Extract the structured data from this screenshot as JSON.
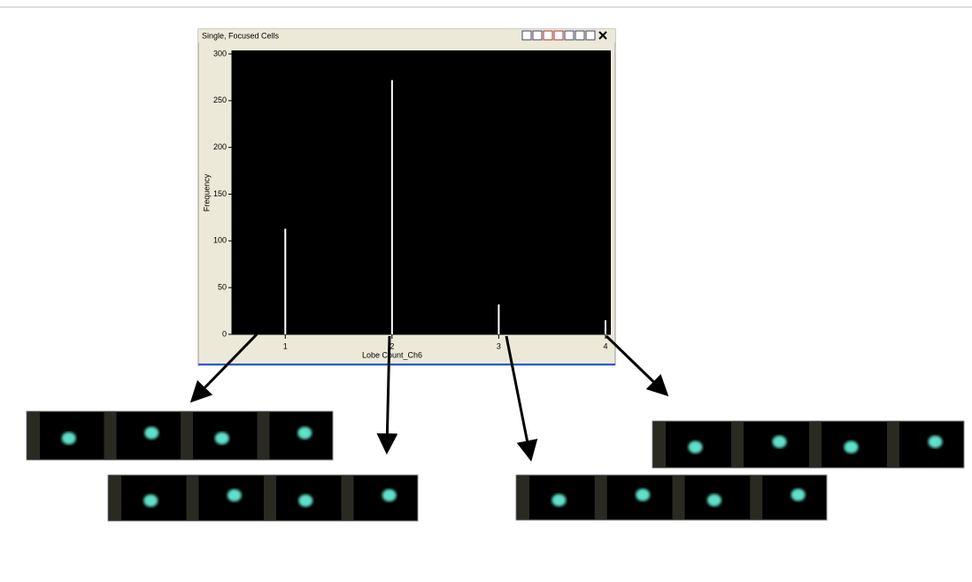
{
  "chart_data": {
    "type": "bar",
    "title": "Single, Focused Cells",
    "x_label": "Lobe Count_Ch6",
    "y_label": "Frequency",
    "x": [
      1,
      2,
      3,
      4
    ],
    "values": [
      113,
      272,
      32,
      15
    ],
    "color": "#ffffff",
    "xlim": [
      0.5,
      4.05
    ],
    "xticks": [
      1,
      2,
      3,
      4
    ],
    "ylim": [
      0,
      300
    ],
    "yticks": [
      0,
      50,
      100,
      150,
      200,
      250,
      300
    ]
  }
}
